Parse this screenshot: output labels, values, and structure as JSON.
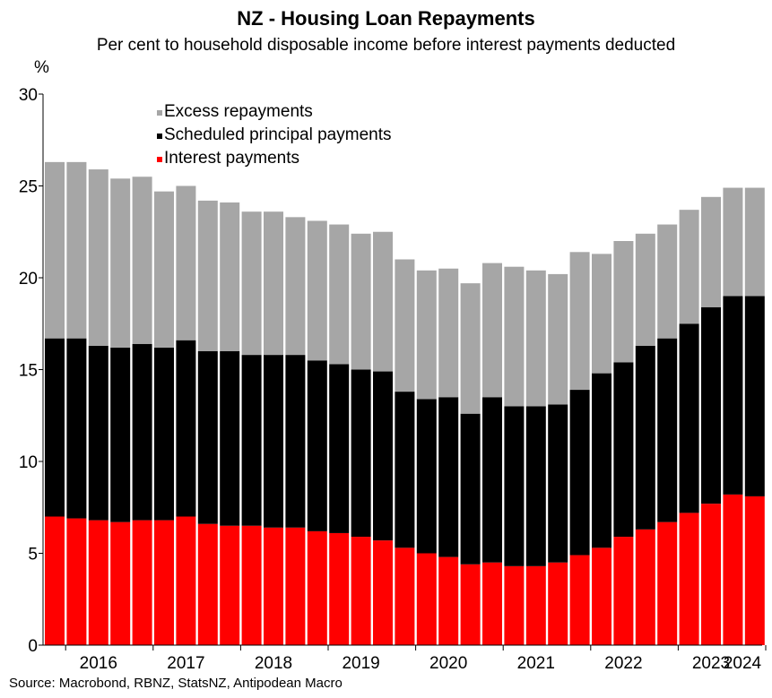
{
  "header": {
    "title": "NZ - Housing Loan Repayments",
    "subtitle": "Per cent to household disposable income before interest payments deducted"
  },
  "footer": {
    "source": "Source: Macrobond, RBNZ, StatsNZ, Antipodean Macro"
  },
  "chart_data": {
    "type": "bar",
    "stacked": true,
    "title": "NZ - Housing Loan Repayments",
    "subtitle": "Per cent to household disposable income before interest payments deducted",
    "ylabel": "%",
    "xlabel": "",
    "ylim": [
      0,
      30
    ],
    "yticks": [
      0,
      5,
      10,
      15,
      20,
      25,
      30
    ],
    "xtick_labels": [
      "2016",
      "2017",
      "2018",
      "2019",
      "2020",
      "2021",
      "2022",
      "2023",
      "2024"
    ],
    "grid": false,
    "legend_position": "top-left",
    "colors": {
      "Interest payments": "#ff0000",
      "Scheduled principal payments": "#000000",
      "Excess repayments": "#a6a6a6"
    },
    "legend_order": [
      "Excess repayments",
      "Scheduled principal payments",
      "Interest payments"
    ],
    "categories": [
      "2015Q4",
      "2016Q1",
      "2016Q2",
      "2016Q3",
      "2016Q4",
      "2017Q1",
      "2017Q2",
      "2017Q3",
      "2017Q4",
      "2018Q1",
      "2018Q2",
      "2018Q3",
      "2018Q4",
      "2019Q1",
      "2019Q2",
      "2019Q3",
      "2019Q4",
      "2020Q1",
      "2020Q2",
      "2020Q3",
      "2020Q4",
      "2021Q1",
      "2021Q2",
      "2021Q3",
      "2021Q4",
      "2022Q1",
      "2022Q2",
      "2022Q3",
      "2022Q4",
      "2023Q1",
      "2023Q2",
      "2023Q3",
      "2023Q4"
    ],
    "series": [
      {
        "name": "Interest payments",
        "values": [
          7.0,
          6.9,
          6.8,
          6.7,
          6.8,
          6.8,
          7.0,
          6.6,
          6.5,
          6.5,
          6.4,
          6.4,
          6.2,
          6.1,
          5.9,
          5.7,
          5.3,
          5.0,
          4.8,
          4.4,
          4.5,
          4.3,
          4.3,
          4.5,
          4.9,
          5.3,
          5.9,
          6.3,
          6.7,
          7.2,
          7.7,
          8.2,
          8.1
        ]
      },
      {
        "name": "Scheduled principal payments",
        "values": [
          9.7,
          9.8,
          9.5,
          9.5,
          9.6,
          9.4,
          9.6,
          9.4,
          9.5,
          9.3,
          9.4,
          9.4,
          9.3,
          9.2,
          9.1,
          9.2,
          8.5,
          8.4,
          8.7,
          8.2,
          9.0,
          8.7,
          8.7,
          8.6,
          9.0,
          9.5,
          9.5,
          10.0,
          10.0,
          10.3,
          10.7,
          10.8,
          10.9
        ]
      },
      {
        "name": "Excess repayments",
        "values": [
          9.6,
          9.6,
          9.6,
          9.2,
          9.1,
          8.5,
          8.4,
          8.2,
          8.1,
          7.8,
          7.8,
          7.5,
          7.6,
          7.6,
          7.4,
          7.6,
          7.2,
          7.0,
          7.0,
          7.1,
          7.3,
          7.6,
          7.4,
          7.1,
          7.5,
          6.5,
          6.6,
          6.1,
          6.2,
          6.2,
          6.0,
          5.9,
          5.9
        ]
      }
    ]
  }
}
